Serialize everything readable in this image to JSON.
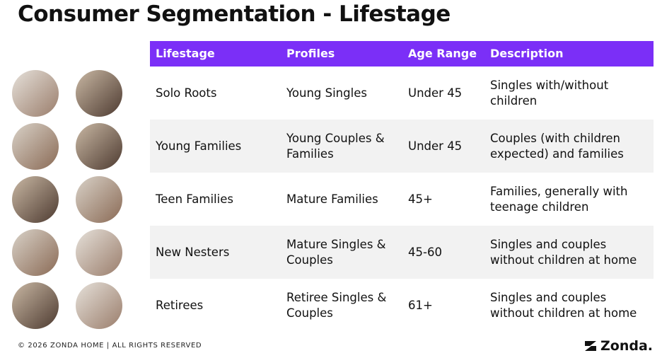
{
  "header": {
    "title": "Consumer Segmentation - Lifestage"
  },
  "table": {
    "columns": [
      "Lifestage",
      "Profiles",
      "Age Range",
      "Description"
    ],
    "rows": [
      [
        [
          "Solo Roots"
        ],
        [
          "Young Singles"
        ],
        [
          "Under 45"
        ],
        [
          "Singles with/without",
          "children"
        ]
      ],
      [
        [
          "Young Families"
        ],
        [
          "Young Couples &",
          "Families"
        ],
        [
          "Under 45"
        ],
        [
          "Couples (with children",
          "expected) and families"
        ]
      ],
      [
        [
          "Teen Families"
        ],
        [
          "Mature Families"
        ],
        [
          "45+"
        ],
        [
          "Families, generally with",
          "teenage children"
        ]
      ],
      [
        [
          "New Nesters"
        ],
        [
          "Mature Singles &",
          "Couples"
        ],
        [
          "45-60"
        ],
        [
          "Singles and couples",
          "without children at home"
        ]
      ],
      [
        [
          "Retirees"
        ],
        [
          "Retiree Singles &",
          "Couples"
        ],
        [
          "61+"
        ],
        [
          "Singles and couples",
          "without children at home"
        ]
      ]
    ]
  },
  "footer": {
    "copyright": "© 2026 ZONDA HOME  |  ALL RIGHTS RESERVED",
    "logo": "Zonda."
  }
}
